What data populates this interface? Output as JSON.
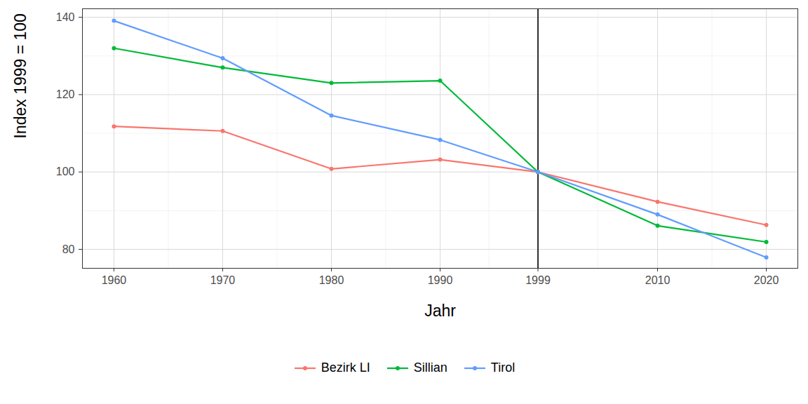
{
  "chart_data": {
    "type": "line",
    "x_label": "Jahr",
    "y_label": "Index 1999 = 100",
    "x": [
      1960,
      1970,
      1980,
      1990,
      1999,
      2010,
      2020
    ],
    "series": [
      {
        "name": "Bezirk LI",
        "color": "#F8766D",
        "marker": "circle",
        "values": [
          111.8,
          110.6,
          100.8,
          103.2,
          100,
          92.3,
          86.3
        ]
      },
      {
        "name": "Sillian",
        "color": "#00BA38",
        "marker": "circle",
        "values": [
          132.0,
          127.0,
          123.0,
          123.6,
          100,
          86.1,
          81.9
        ]
      },
      {
        "name": "Tirol",
        "color": "#619CFF",
        "marker": "circle",
        "values": [
          139.1,
          129.4,
          114.6,
          108.3,
          100,
          89.0,
          77.9
        ]
      }
    ],
    "xlim": [
      1957.1,
      2022.9
    ],
    "xticks": [
      1960,
      1970,
      1980,
      1990,
      1999,
      2010,
      2020
    ],
    "ylim": [
      75.1,
      142.2
    ],
    "yticks": [
      80,
      100,
      120,
      140
    ],
    "vlines": [
      1999
    ],
    "grid": true,
    "legend": "bottom"
  }
}
